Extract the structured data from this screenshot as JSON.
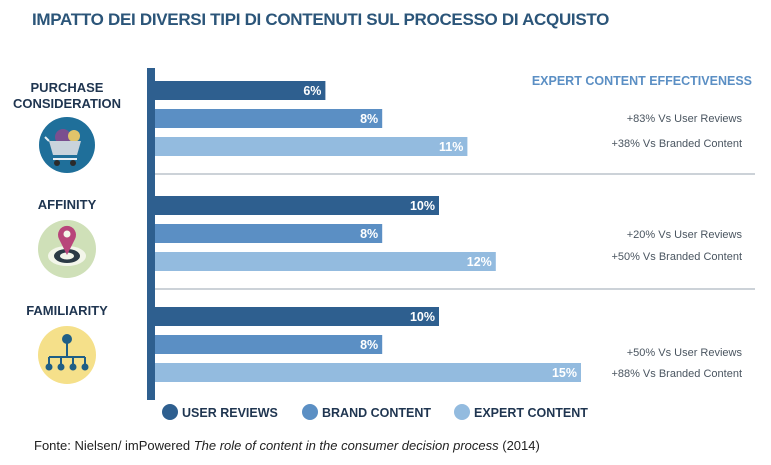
{
  "title": "IMPATTO DEI DIVERSI TIPI DI CONTENUTI SUL PROCESSO DI ACQUISTO",
  "colors": {
    "user_reviews": "#2e5f8f",
    "brand_content": "#5b8fc4",
    "expert_content": "#93bbdf",
    "axis": "#2e5f8f"
  },
  "effectiveness_title": "EXPERT CONTENT EFFECTIVENESS",
  "groups": [
    {
      "label_lines": [
        "PURCHASE",
        "CONSIDERATION"
      ],
      "icon": "shopping-cart-icon",
      "notes": [
        "+83% Vs User Reviews",
        "+38% Vs Branded Content"
      ]
    },
    {
      "label_lines": [
        "AFFINITY"
      ],
      "icon": "map-pin-target-icon",
      "notes": [
        "+20% Vs User Reviews",
        "+50% Vs Branded Content"
      ]
    },
    {
      "label_lines": [
        "FAMILIARITY"
      ],
      "icon": "network-hierarchy-icon",
      "notes": [
        "+50% Vs User Reviews",
        "+88% Vs Branded Content"
      ]
    }
  ],
  "chart_data": {
    "type": "bar",
    "orientation": "horizontal",
    "categories": [
      "PURCHASE CONSIDERATION",
      "AFFINITY",
      "FAMILIARITY"
    ],
    "series": [
      {
        "name": "USER REVIEWS",
        "values": [
          6,
          10,
          10
        ],
        "labels": [
          "6%",
          "10%",
          "10%"
        ]
      },
      {
        "name": "BRAND CONTENT",
        "values": [
          8,
          8,
          8
        ],
        "labels": [
          "8%",
          "8%",
          "8%"
        ]
      },
      {
        "name": "EXPERT CONTENT",
        "values": [
          11,
          12,
          15
        ],
        "labels": [
          "11%",
          "12%",
          "15%"
        ]
      }
    ],
    "unit": "%",
    "xlim": [
      0,
      15
    ],
    "legend_position": "bottom",
    "grid": false
  },
  "source": {
    "prefix": "Fonte: Nielsen/ imPowered ",
    "title_italic": "The role of content in the consumer decision process",
    "suffix": " (2014)"
  }
}
